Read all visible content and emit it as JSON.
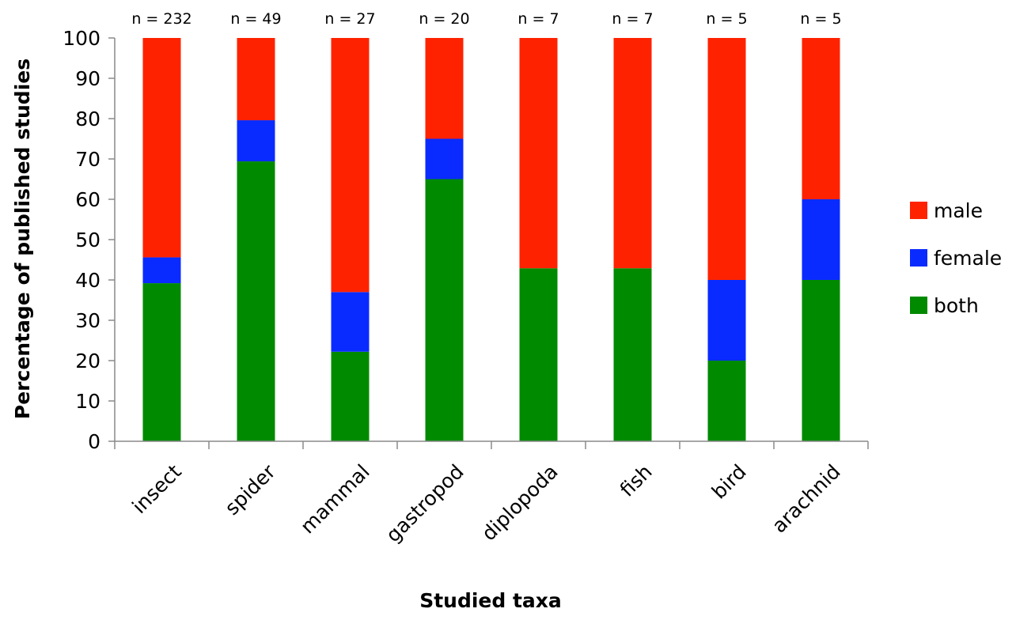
{
  "chart_data": {
    "type": "bar",
    "stacked": true,
    "title": "",
    "xlabel": "Studied taxa",
    "ylabel": "Percentage of published studies",
    "ylim": [
      0,
      100
    ],
    "yticks": [
      0,
      10,
      20,
      30,
      40,
      50,
      60,
      70,
      80,
      90,
      100
    ],
    "grid": false,
    "legend_position": "right",
    "categories": [
      "insect",
      "spider",
      "mammal",
      "gastropod",
      "diplopoda",
      "fish",
      "bird",
      "arachnid"
    ],
    "annotations": [
      "n = 232",
      "n = 49",
      "n = 27",
      "n = 20",
      "n = 7",
      "n = 7",
      "n = 5",
      "n = 5"
    ],
    "series": [
      {
        "name": "both",
        "color": "#008A00",
        "values": [
          39.2,
          69.4,
          22.2,
          65.0,
          42.9,
          42.9,
          20.0,
          40.0
        ]
      },
      {
        "name": "female",
        "color": "#0A2BFF",
        "values": [
          6.4,
          10.2,
          14.8,
          10.0,
          0,
          0,
          20.0,
          20.0
        ]
      },
      {
        "name": "male",
        "color": "#FF2200",
        "values": [
          54.4,
          20.4,
          63.0,
          25.0,
          57.1,
          57.1,
          60.0,
          40.0
        ]
      }
    ],
    "legend_order": [
      "male",
      "female",
      "both"
    ]
  }
}
